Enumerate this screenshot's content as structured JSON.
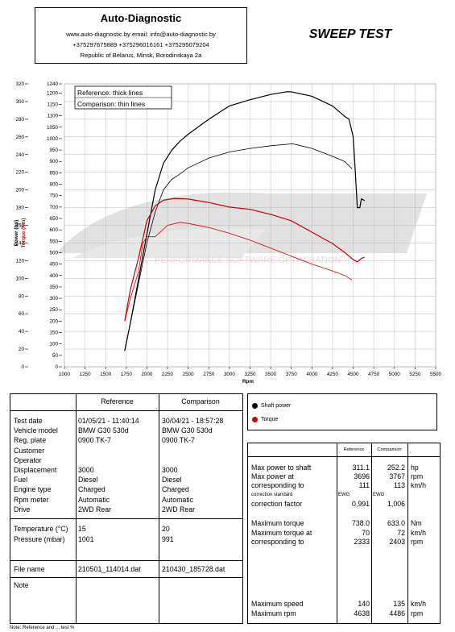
{
  "header": {
    "company": "Auto-Diagnostic",
    "line1": "www.auto-diagnostic.by      email: info@auto-diagnostic.by",
    "line2": "+375297675889  +375296016161  +375295079204",
    "line3": "Republic of Belarus, Minsk, Borodinskaya 2a"
  },
  "title": "SWEEP TEST",
  "chart_data": {
    "type": "line",
    "xlabel": "Rpm",
    "ylabel_left": "Power (hp)",
    "ylabel_right": "Torque (Nm)",
    "x_ticks": [
      "1000",
      "1250",
      "1500",
      "1750",
      "2000",
      "2250",
      "2500",
      "2750",
      "3000",
      "3250",
      "3500",
      "3750",
      "4000",
      "4250",
      "4500",
      "4750",
      "5000",
      "5250",
      "5500"
    ],
    "xlim": [
      1000,
      5500
    ],
    "y_power_ticks": [
      "0",
      "20",
      "40",
      "60",
      "80",
      "100",
      "120",
      "140",
      "160",
      "180",
      "200",
      "220",
      "240",
      "260",
      "280",
      "300",
      "320"
    ],
    "y_power_lim": [
      0,
      320
    ],
    "y_torque_ticks": [
      "0",
      "50",
      "100",
      "150",
      "200",
      "250",
      "300",
      "350",
      "400",
      "450",
      "500",
      "550",
      "600",
      "650",
      "700",
      "750",
      "800",
      "850",
      "900",
      "950",
      "1000",
      "1050",
      "1100",
      "1150",
      "1200",
      "1240"
    ],
    "y_torque_lim": [
      0,
      1240
    ],
    "grid": true,
    "annotation_reference": "Reference: thick lines",
    "annotation_comparison": "Comparison: thin lines",
    "watermark_text": "PERFORMANCE SOFTWARE OPTIMISATION",
    "series": [
      {
        "name": "Shaft power",
        "axis": "power",
        "style": "thick",
        "color": "#000000",
        "x": [
          1730,
          1800,
          1900,
          2000,
          2100,
          2200,
          2300,
          2400,
          2500,
          2750,
          3000,
          3250,
          3500,
          3696,
          3750,
          4000,
          4250,
          4400,
          4450,
          4500,
          4520,
          4550,
          4580,
          4600,
          4638
        ],
        "y": [
          18,
          50,
          100,
          150,
          200,
          230,
          245,
          255,
          263,
          280,
          295,
          302,
          308,
          311.1,
          311,
          306,
          295,
          283,
          280,
          260,
          230,
          180,
          180,
          190,
          188
        ]
      },
      {
        "name": "Shaft power",
        "axis": "power",
        "style": "thin",
        "color": "#000000",
        "x": [
          1730,
          1800,
          1900,
          2000,
          2100,
          2200,
          2300,
          2400,
          2500,
          2750,
          3000,
          3250,
          3500,
          3767,
          4000,
          4250,
          4400,
          4486
        ],
        "y": [
          18,
          50,
          95,
          140,
          175,
          200,
          212,
          218,
          225,
          236,
          243,
          247,
          250,
          252.2,
          247,
          238,
          232,
          224
        ]
      },
      {
        "name": "Torque",
        "axis": "torque",
        "style": "thick",
        "color": "#cc0000",
        "x": [
          1730,
          1800,
          1900,
          2000,
          2100,
          2200,
          2333,
          2500,
          2750,
          3000,
          3250,
          3500,
          3750,
          4000,
          4250,
          4400,
          4500,
          4550,
          4600,
          4638
        ],
        "y": [
          200,
          340,
          480,
          640,
          705,
          730,
          738,
          735,
          720,
          700,
          690,
          668,
          640,
          590,
          540,
          500,
          470,
          460,
          475,
          480
        ]
      },
      {
        "name": "Torque",
        "axis": "torque",
        "style": "thin",
        "color": "#cc0000",
        "x": [
          1730,
          1800,
          1900,
          1950,
          2000,
          2100,
          2250,
          2403,
          2500,
          2750,
          3000,
          3250,
          3500,
          3750,
          4000,
          4250,
          4400,
          4486
        ],
        "y": [
          200,
          300,
          420,
          540,
          570,
          570,
          620,
          633,
          628,
          610,
          585,
          555,
          520,
          485,
          450,
          420,
          400,
          380
        ]
      }
    ]
  },
  "info_table": {
    "col_reference": "Reference",
    "col_comparison": "Comparison",
    "rows1": [
      {
        "label": "Test date",
        "ref": "01/05/21 - 11:40:14",
        "cmp": "30/04/21 - 18:57:28"
      },
      {
        "label": "Vehicle model",
        "ref": "BMW G30 530d",
        "cmp": "BMW G30 530d"
      },
      {
        "label": "Reg. plate",
        "ref": "0900 TK-7",
        "cmp": "0900 TK-7"
      },
      {
        "label": "Customer",
        "ref": "",
        "cmp": ""
      },
      {
        "label": "Operator",
        "ref": "",
        "cmp": ""
      },
      {
        "label": "Displacement",
        "ref": "3000",
        "cmp": "3000"
      },
      {
        "label": "Fuel",
        "ref": "Diesel",
        "cmp": "Diesel"
      },
      {
        "label": "Engine type",
        "ref": "Charged",
        "cmp": "Charged"
      },
      {
        "label": "Rpm meter",
        "ref": "Automatic",
        "cmp": "Automatic"
      },
      {
        "label": "Drive",
        "ref": "2WD Rear",
        "cmp": "2WD Rear"
      }
    ],
    "rows2": [
      {
        "label": "Temperature (°C)",
        "ref": "15",
        "cmp": "20"
      },
      {
        "label": "Pressure (mbar)",
        "ref": "1001",
        "cmp": "991"
      }
    ],
    "file_label": "File name",
    "file_ref": "210501_114014.dat",
    "file_cmp": "210430_185728.dat",
    "note_label": "Note"
  },
  "legend": {
    "shaft_power": "Shaft power",
    "torque": "Torque",
    "shaft_color": "#000000",
    "torque_color": "#cc0000"
  },
  "results": {
    "col_reference": "Reference",
    "col_comparison": "Comparison",
    "max_power_label": "Max power to shaft",
    "max_power_ref": "311.1",
    "max_power_cmp": "252.2",
    "max_power_unit": "hp",
    "max_power_at_label": "Max power at",
    "max_power_at_ref": "3696",
    "max_power_at_cmp": "3767",
    "max_power_at_unit": "rpm",
    "corr_to_label": "corresponding to",
    "corr_to_ref": "111",
    "corr_to_cmp": "113",
    "corr_to_unit": "km/h",
    "corr_std_label": "correction standard",
    "corr_std_ref": "EWG",
    "corr_std_cmp": "EWG",
    "corr_factor_label": "correction factor",
    "corr_factor_ref": "0,991",
    "corr_factor_cmp": "1,006",
    "max_torque_label": "Maximum torque",
    "max_torque_ref": "738.0",
    "max_torque_cmp": "633.0",
    "max_torque_unit": "Nm",
    "max_torque_at_label": "Maximum torque at",
    "max_torque_at_ref": "70",
    "max_torque_at_cmp": "72",
    "max_torque_at_unit": "km/h",
    "corr_to2_label": "corresponding to",
    "corr_to2_ref": "2333",
    "corr_to2_cmp": "2403",
    "corr_to2_unit": "rpm",
    "max_speed_label": "Maximum speed",
    "max_speed_ref": "140",
    "max_speed_cmp": "135",
    "max_speed_unit": "km/h",
    "max_rpm_label": "Maximum rpm",
    "max_rpm_ref": "4638",
    "max_rpm_cmp": "4486",
    "max_rpm_unit": "rpm"
  },
  "bottom_note": "Note: Reference and ... test %"
}
